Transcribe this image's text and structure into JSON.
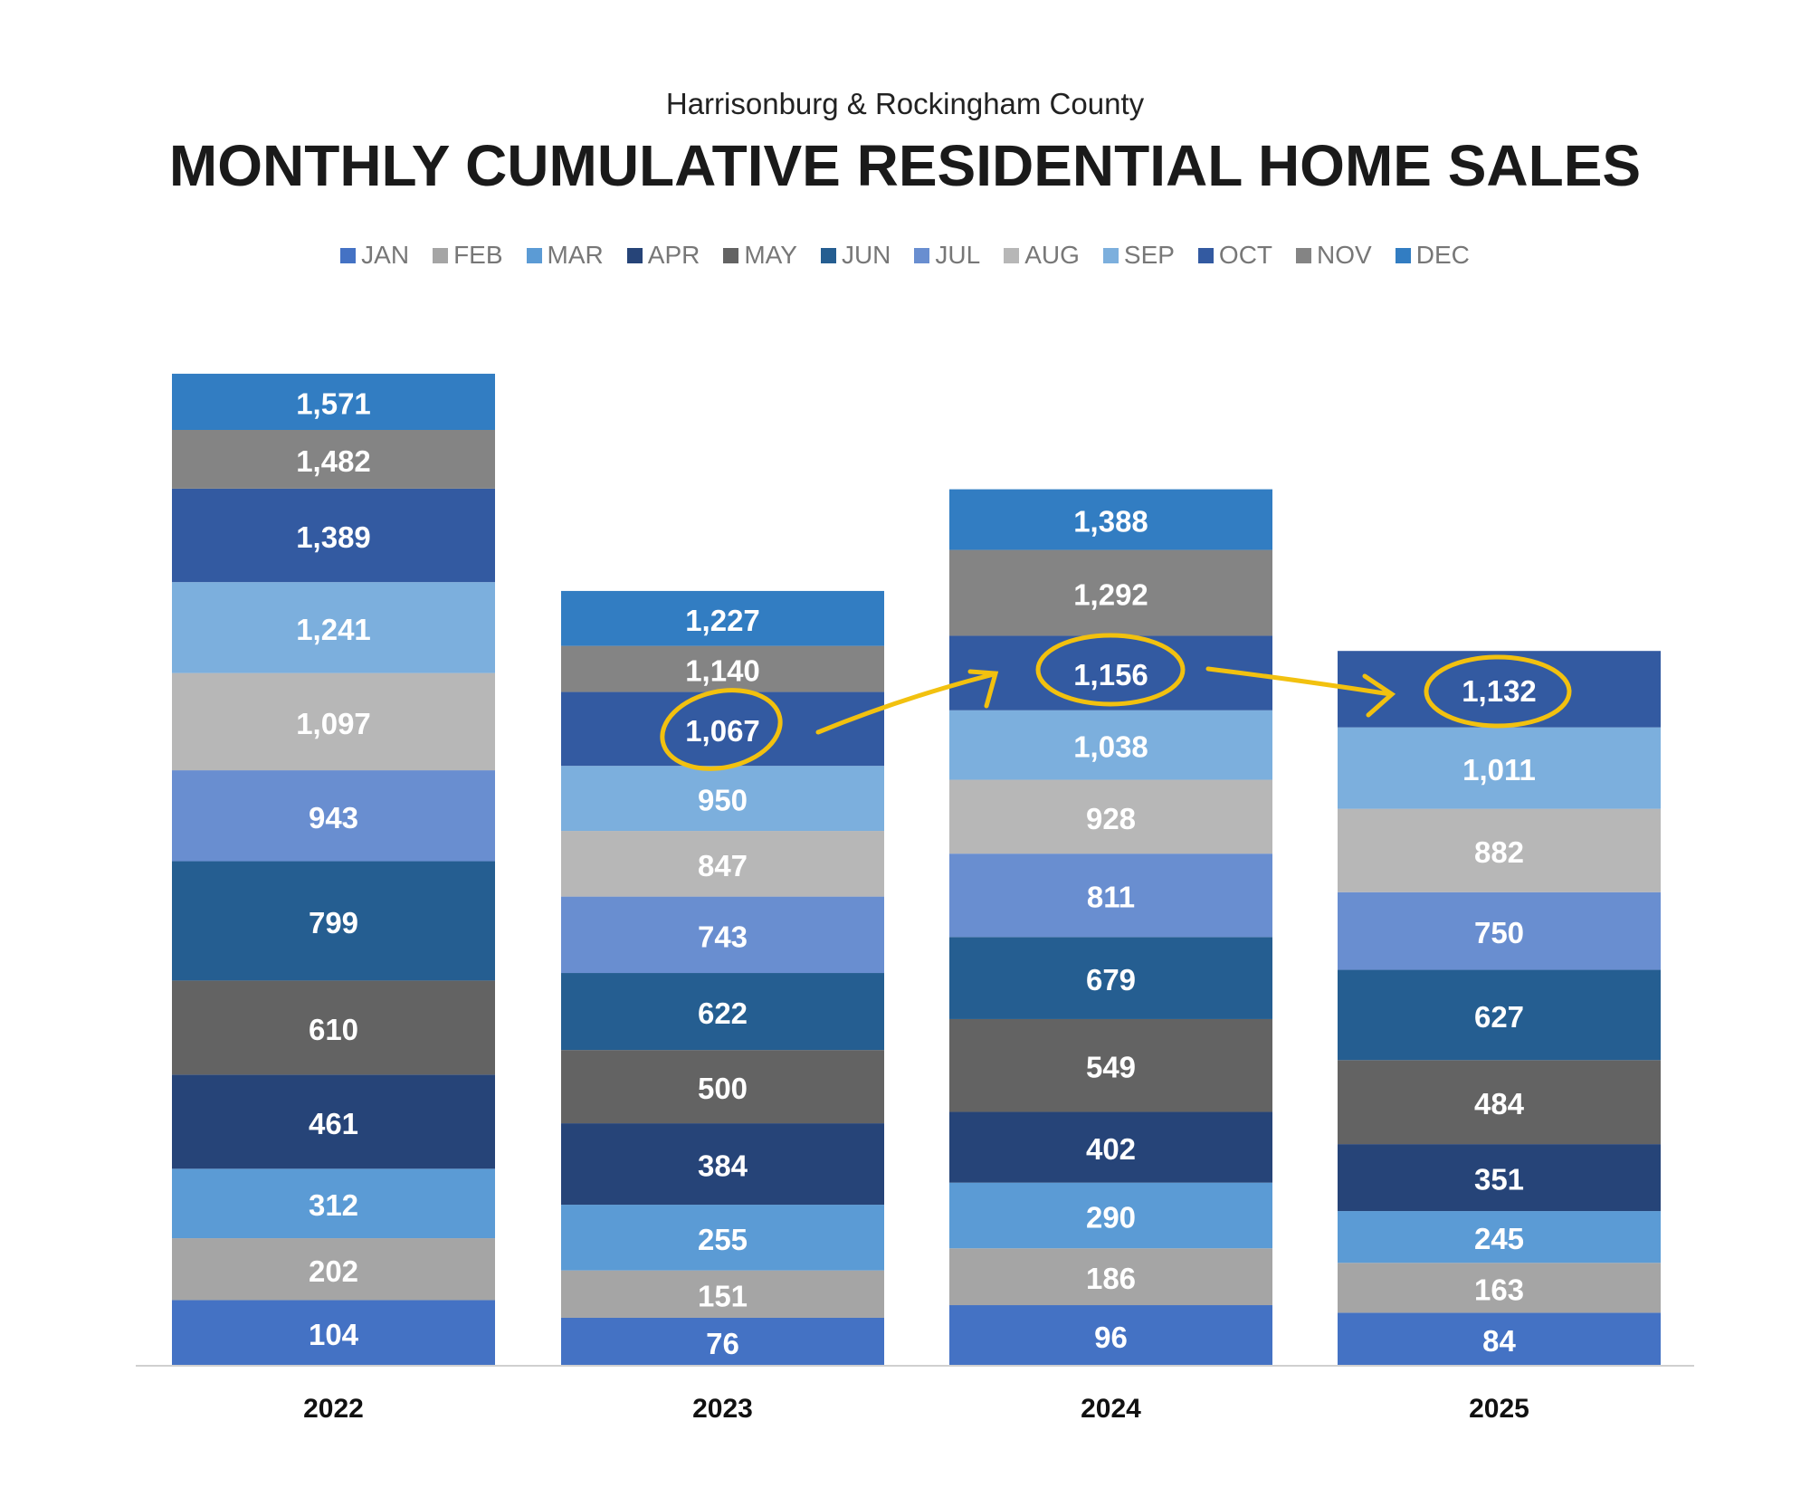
{
  "chart_data": {
    "type": "bar",
    "stacked": true,
    "subtitle": "Harrisonburg & Rockingham County",
    "title": "MONTHLY CUMULATIVE RESIDENTIAL HOME SALES",
    "categories": [
      "2022",
      "2023",
      "2024",
      "2025"
    ],
    "legend_position": "top",
    "grid": false,
    "series": [
      {
        "name": "JAN",
        "color": "#4472C4",
        "values": [
          104,
          76,
          96,
          84
        ]
      },
      {
        "name": "FEB",
        "color": "#A5A5A5",
        "values": [
          202,
          151,
          186,
          163
        ]
      },
      {
        "name": "MAR",
        "color": "#5B9BD5",
        "values": [
          312,
          255,
          290,
          245
        ]
      },
      {
        "name": "APR",
        "color": "#264478",
        "values": [
          461,
          384,
          402,
          351
        ]
      },
      {
        "name": "MAY",
        "color": "#636363",
        "values": [
          610,
          500,
          549,
          484
        ]
      },
      {
        "name": "JUN",
        "color": "#255E91",
        "values": [
          799,
          622,
          679,
          627
        ]
      },
      {
        "name": "JUL",
        "color": "#698ED0",
        "values": [
          943,
          743,
          811,
          750
        ]
      },
      {
        "name": "AUG",
        "color": "#B7B7B7",
        "values": [
          1097,
          847,
          928,
          882
        ]
      },
      {
        "name": "SEP",
        "color": "#7CAFDD",
        "values": [
          1241,
          950,
          1038,
          1011
        ]
      },
      {
        "name": "OCT",
        "color": "#335AA1",
        "values": [
          1389,
          1067,
          1156,
          1132
        ]
      },
      {
        "name": "NOV",
        "color": "#848484",
        "values": [
          1482,
          1140,
          1292,
          null
        ]
      },
      {
        "name": "DEC",
        "color": "#327DC2",
        "values": [
          1571,
          1227,
          1388,
          null
        ]
      }
    ],
    "annotation_color": "#F2C10F"
  }
}
